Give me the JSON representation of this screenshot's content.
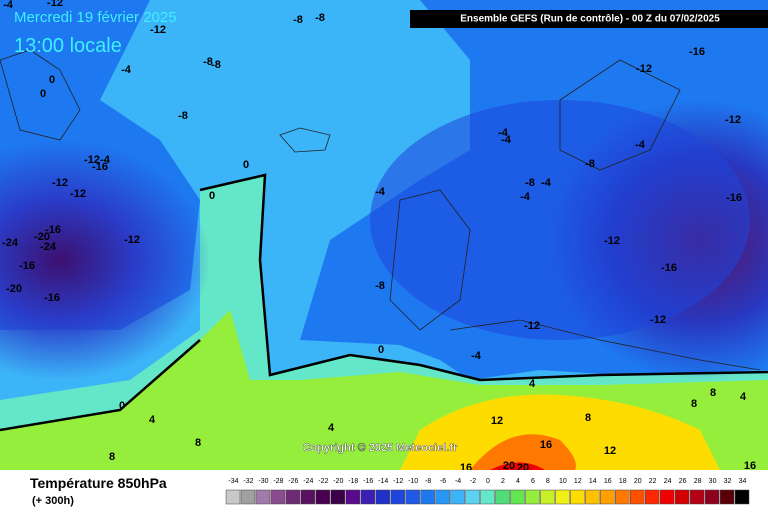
{
  "header": {
    "date": "Mercredi 19 février 2025",
    "local_time": "13:00 locale",
    "run": "Ensemble GEFS  (Run de contrôle)  -  00 Z du 07/02/2025"
  },
  "copyright": "Copyright © 2025 Meteociel.fr",
  "footer": {
    "title": "Température 850hPa",
    "lead": "(+ 300h)"
  },
  "map_labels": [
    "-4",
    "-12",
    "-8",
    "-8",
    "-12",
    "-8",
    "-8",
    "-4",
    "0",
    "0",
    "-16",
    "-12",
    "-12",
    "-8",
    "-4",
    "-4",
    "-4",
    "-12",
    "-4",
    "-16",
    "0",
    "-8",
    "-12",
    "-12",
    "-4",
    "-8",
    "-4",
    "-4",
    "-16",
    "0",
    "-16",
    "-20",
    "-24",
    "-24",
    "-12",
    "-12",
    "-16",
    "-16",
    "-20",
    "-16",
    "-8",
    "-12",
    "-12",
    "0",
    "-4",
    "4",
    "0",
    "8",
    "8",
    "8",
    "4",
    "4",
    "12",
    "4",
    "8",
    "16",
    "12",
    "8",
    "20",
    "20",
    "16",
    "16"
  ],
  "legend": {
    "values": [
      -34,
      -32,
      -30,
      -28,
      -26,
      -24,
      -22,
      -20,
      -18,
      -16,
      -14,
      -12,
      -10,
      -8,
      -6,
      -4,
      -2,
      0,
      2,
      4,
      6,
      8,
      10,
      12,
      14,
      16,
      18,
      20,
      22,
      24,
      26,
      28,
      30,
      32,
      34
    ],
    "colors": [
      "#c8c8c8",
      "#a0a0a0",
      "#a07aa8",
      "#8a4c8e",
      "#6e2a74",
      "#5a1060",
      "#4a0050",
      "#3c0048",
      "#5a0a8c",
      "#3c1eb4",
      "#2030c8",
      "#1e46dc",
      "#1e5ae6",
      "#1e78f0",
      "#2896f5",
      "#3cb4f8",
      "#5ad2f0",
      "#64e6c8",
      "#50dc78",
      "#64e650",
      "#96ee3c",
      "#c8f028",
      "#f0f014",
      "#ffdc00",
      "#ffc000",
      "#ffa000",
      "#ff7800",
      "#ff5000",
      "#ff2800",
      "#f00000",
      "#d20000",
      "#b40014",
      "#8c001e",
      "#5a000a",
      "#000000"
    ]
  }
}
